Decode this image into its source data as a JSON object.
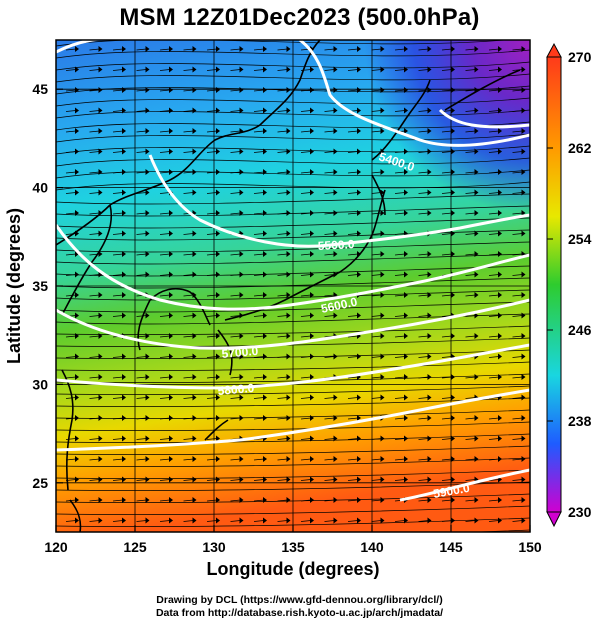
{
  "title": "MSM 12Z01Dec2023 (500.0hPa)",
  "map": {
    "x_axis": {
      "label": "Longitude (degrees)",
      "ticks": [
        "120",
        "125",
        "130",
        "135",
        "140",
        "145",
        "150"
      ]
    },
    "y_axis": {
      "label": "Latitude  (degrees)",
      "ticks": [
        "25",
        "30",
        "35",
        "40",
        "45"
      ]
    },
    "lon_range": [
      120,
      150
    ],
    "lat_range": [
      22.5,
      47.5
    ],
    "field": "temperature shading with geopotential height contours and wind streamlines/vectors",
    "contour_labels": [
      "5400.0",
      "5500.0",
      "5600.0",
      "5700.0",
      "5800.0",
      "5900.0"
    ],
    "gridlines": true
  },
  "colorbar": {
    "ticks": [
      "270",
      "262",
      "254",
      "246",
      "238",
      "230"
    ],
    "range": [
      230,
      270
    ],
    "colors": {
      "max": "#ff3a1a",
      "orange": "#ff9a00",
      "yellow": "#e8e800",
      "green": "#2ecc2e",
      "cyan": "#19d6e0",
      "blue": "#1e5cff",
      "min": "#d000d0"
    }
  },
  "credits": {
    "line1": "Drawing by DCL (https://www.gfd-dennou.org/library/dcl/)",
    "line2": "Data from http://database.rish.kyoto-u.ac.jp/arch/jmadata/"
  }
}
